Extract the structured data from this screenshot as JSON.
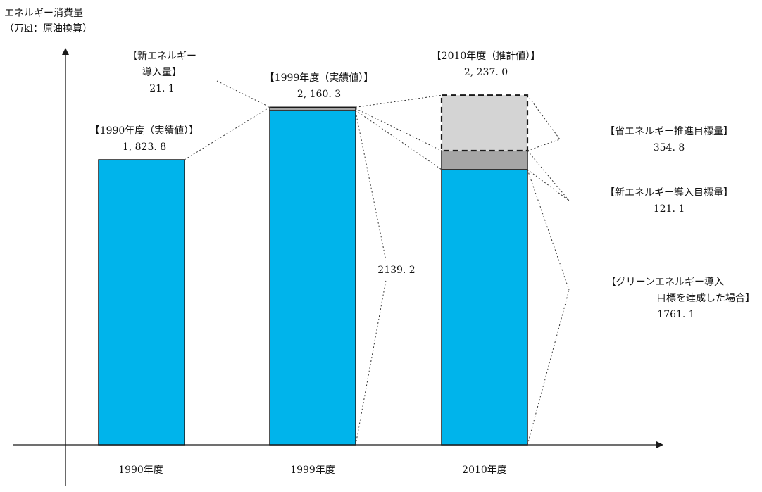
{
  "chart_data": {
    "type": "bar",
    "categories": [
      "1990年度",
      "1999年度",
      "2010年度"
    ],
    "ylabel": [
      "エネルギー消費量",
      "（万kl：原油換算）"
    ],
    "series": [
      {
        "name": "グリーンエネルギー導入目標を達成した場合",
        "values": [
          1823.8,
          2139.2,
          1761.1
        ]
      },
      {
        "name": "新エネルギー導入量",
        "values": [
          0,
          21.1,
          121.1
        ]
      },
      {
        "name": "省エネルギー推進目標量",
        "values": [
          0,
          0,
          354.8
        ]
      }
    ],
    "colors": {
      "base": "#00b4eb",
      "new_energy": "#a6a6a6",
      "energy_saving": "#d4d4d4",
      "outline": "#1a1a1a",
      "axis": "#1a1a1a"
    },
    "annotations": {
      "bar1990": {
        "title": "【1990年度（実績値）】",
        "value": "1, 823. 8"
      },
      "bar1999": {
        "title": "【1999年度（実績値）】",
        "value": "2, 160. 3"
      },
      "bar2010": {
        "title": "【2010年度（推計値）】",
        "value": "2, 237. 0"
      },
      "new1999": {
        "lines": [
          "【新エネルギー",
          "導入量】"
        ],
        "value": "21. 1"
      },
      "base1999": {
        "value": "2139. 2"
      },
      "saving2010": {
        "title": "【省エネルギー推進目標量】",
        "value": "354. 8"
      },
      "new2010": {
        "title": "【新エネルギー導入目標量】",
        "value": "121. 1"
      },
      "base2010": {
        "lines": [
          "【グリーンエネルギー導入",
          "目標を達成した場合】"
        ],
        "value": "1761. 1"
      }
    }
  }
}
